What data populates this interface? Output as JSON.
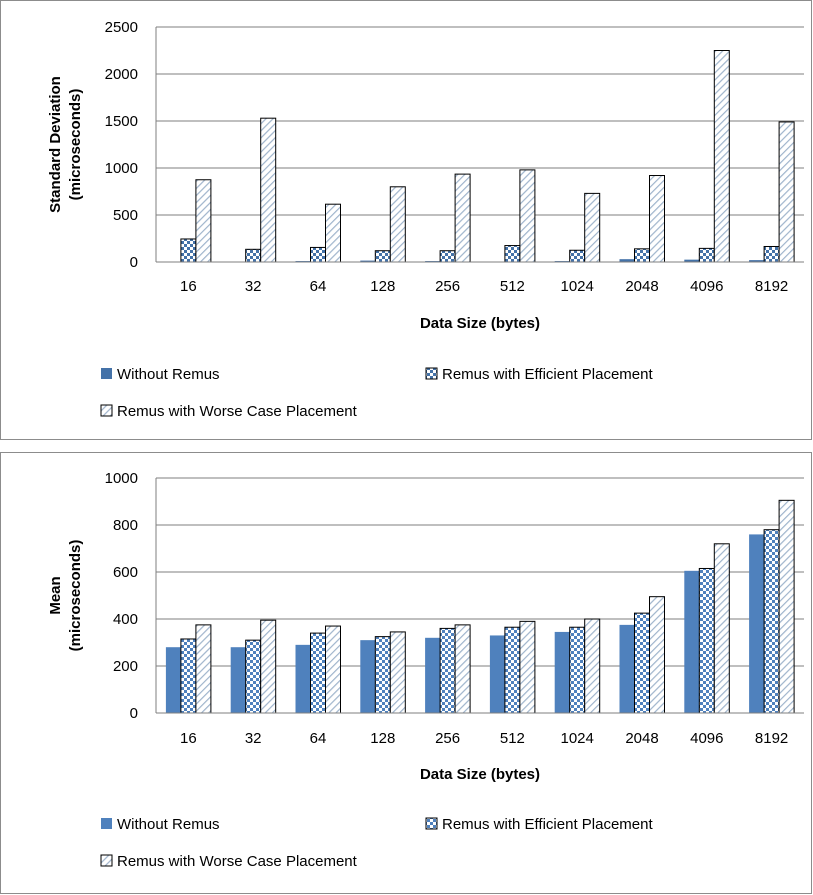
{
  "chart_data": [
    {
      "type": "bar",
      "title": "",
      "xlabel": "Data Size (bytes)",
      "ylabel": [
        "Standard Deviation",
        "(microseconds)"
      ],
      "categories": [
        "16",
        "32",
        "64",
        "128",
        "256",
        "512",
        "1024",
        "2048",
        "4096",
        "8192"
      ],
      "ylim": [
        0,
        2500
      ],
      "yticks": [
        "0",
        "500",
        "1000",
        "1500",
        "2000",
        "2500"
      ],
      "grid": true,
      "legend_position": "bottom",
      "series": [
        {
          "name": "Without Remus",
          "pattern": "solid",
          "color": "#4472a8",
          "values": [
            5,
            5,
            10,
            15,
            10,
            5,
            10,
            30,
            25,
            20
          ]
        },
        {
          "name": "Remus with Efficient Placement",
          "pattern": "checker",
          "color": "#4472a8",
          "values": [
            245,
            135,
            155,
            120,
            120,
            175,
            125,
            140,
            145,
            165
          ]
        },
        {
          "name": "Remus with Worse Case Placement",
          "pattern": "diagonal",
          "color": "#9fb4cc",
          "values": [
            875,
            1530,
            615,
            800,
            935,
            980,
            730,
            920,
            2250,
            1490
          ]
        }
      ]
    },
    {
      "type": "bar",
      "title": "",
      "xlabel": "Data Size (bytes)",
      "ylabel": [
        "Mean",
        "(microseconds)"
      ],
      "categories": [
        "16",
        "32",
        "64",
        "128",
        "256",
        "512",
        "1024",
        "2048",
        "4096",
        "8192"
      ],
      "ylim": [
        0,
        1000
      ],
      "yticks": [
        "0",
        "200",
        "400",
        "600",
        "800",
        "1000"
      ],
      "grid": true,
      "legend_position": "bottom",
      "series": [
        {
          "name": "Without Remus",
          "pattern": "solid",
          "color": "#4f81bd",
          "values": [
            280,
            280,
            290,
            310,
            320,
            330,
            345,
            375,
            605,
            760
          ]
        },
        {
          "name": "Remus with Efficient Placement",
          "pattern": "checker",
          "color": "#4f81bd",
          "values": [
            315,
            310,
            340,
            325,
            360,
            365,
            365,
            425,
            615,
            780
          ]
        },
        {
          "name": "Remus with Worse Case Placement",
          "pattern": "diagonal",
          "color": "#9fb4cc",
          "values": [
            375,
            395,
            370,
            345,
            375,
            390,
            400,
            495,
            720,
            905
          ]
        }
      ]
    }
  ]
}
